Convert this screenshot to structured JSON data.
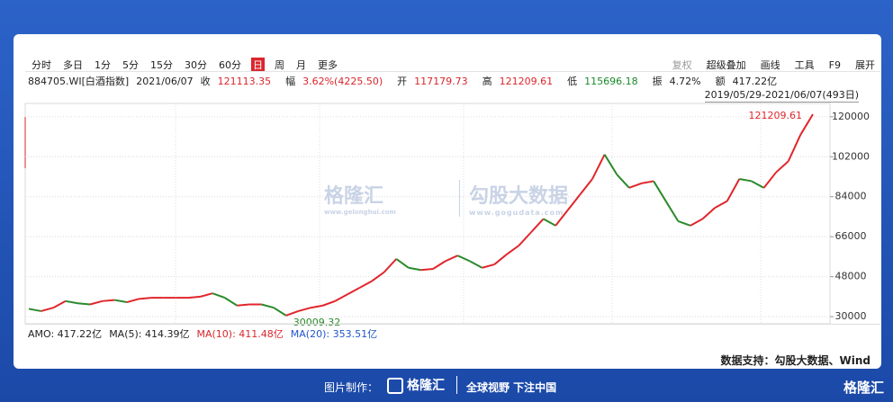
{
  "toolbar": {
    "periods": [
      "分时",
      "多日",
      "1分",
      "5分",
      "15分",
      "30分",
      "60分",
      "日",
      "周",
      "月",
      "更多"
    ],
    "selected": 7,
    "tools": [
      "复权",
      "超级叠加",
      "画线",
      "工具",
      "F9",
      "展开"
    ]
  },
  "info": {
    "code": "884705.WI[白酒指数]",
    "date": "2021/06/07",
    "items": [
      {
        "label": "收",
        "value": "121113.35",
        "color": "#d9262c"
      },
      {
        "label": "幅",
        "value": "3.62%(4225.50)",
        "color": "#d9262c"
      },
      {
        "label": "开",
        "value": "117179.73",
        "color": "#d9262c"
      },
      {
        "label": "高",
        "value": "121209.61",
        "color": "#d9262c"
      },
      {
        "label": "低",
        "value": "115696.18",
        "color": "#1a8a2a"
      },
      {
        "label": "振",
        "value": "4.72%",
        "color": "#222222"
      },
      {
        "label": "额",
        "value": "417.22亿",
        "color": "#222222"
      }
    ],
    "range": "2019/05/29-2021/06/07(493日)"
  },
  "chart_data": {
    "type": "line",
    "up_color": "#e0262c",
    "down_color": "#2a8a2a",
    "values": [
      33500,
      32500,
      34000,
      37000,
      36000,
      35500,
      37000,
      37500,
      36500,
      38000,
      38500,
      38500,
      38500,
      38500,
      39000,
      40500,
      38500,
      35000,
      35500,
      35500,
      34000,
      30500,
      32500,
      34000,
      35000,
      37000,
      40000,
      43000,
      46000,
      50000,
      56000,
      52000,
      51000,
      51500,
      55000,
      57500,
      55000,
      52000,
      53500,
      58000,
      62000,
      68000,
      74000,
      71000,
      78000,
      85000,
      92000,
      103000,
      94000,
      88000,
      90000,
      91000,
      82000,
      73000,
      71000,
      74000,
      79000,
      82000,
      92000,
      91000,
      88000,
      95000,
      100000,
      112000,
      121113.35
    ],
    "ylim": [
      26800,
      126000
    ],
    "yticks": [
      30000,
      48000,
      66000,
      84000,
      102000,
      120000
    ],
    "grid": true,
    "annotations": [
      "121209.61",
      "30009.32"
    ]
  },
  "amo": [
    {
      "text": "AMO: 417.22亿",
      "color": "#222222"
    },
    {
      "text": "MA(5): 414.39亿",
      "color": "#222222"
    },
    {
      "text": "MA(10): 411.48亿",
      "color": "#d9262c"
    },
    {
      "text": "MA(20): 353.51亿",
      "color": "#2255cc"
    }
  ],
  "source": "数据支持：勾股大数据、Wind",
  "watermark": {
    "brand1": "格隆汇",
    "url1": "www.gelonghui.com",
    "brand2": "勾股大数据",
    "url2": "www.gogudata.com"
  },
  "footer": {
    "made_by": "图片制作：",
    "brand": "格隆汇",
    "slogan": "全球视野 下注中国",
    "corner": "格隆汇"
  }
}
